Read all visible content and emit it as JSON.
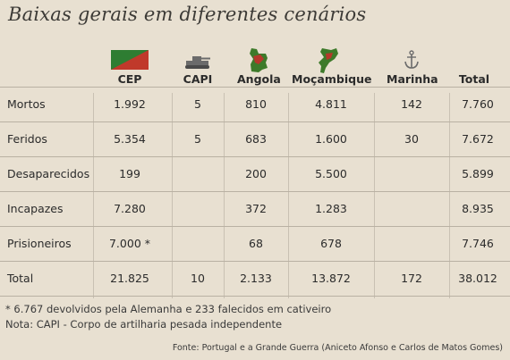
{
  "title": "Baixas gerais em diferentes cenários",
  "columns": [
    "CEP",
    "CAPI",
    "Angola",
    "Moçambique",
    "Marinha",
    "Total"
  ],
  "icons": [
    "cep-flag-icon",
    "tank-icon",
    "angola-map-icon",
    "mozambique-map-icon",
    "anchor-icon"
  ],
  "colors": {
    "flag_green": "#2e7d32",
    "flag_red": "#c0392b",
    "map_green": "#3d7a2a",
    "map_red": "#b5382b"
  },
  "rows": [
    {
      "label": "Mortos",
      "values": [
        "1.992",
        "5",
        "810",
        "4.811",
        "142",
        "7.760"
      ]
    },
    {
      "label": "Feridos",
      "values": [
        "5.354",
        "5",
        "683",
        "1.600",
        "30",
        "7.672"
      ]
    },
    {
      "label": "Desaparecidos",
      "values": [
        "199",
        "",
        "200",
        "5.500",
        "",
        "5.899"
      ]
    },
    {
      "label": "Incapazes",
      "values": [
        "7.280",
        "",
        "372",
        "1.283",
        "",
        "8.935"
      ]
    },
    {
      "label": "Prisioneiros",
      "values": [
        "7.000 *",
        "",
        "68",
        "678",
        "",
        "7.746"
      ]
    },
    {
      "label": "Total",
      "values": [
        "21.825",
        "10",
        "2.133",
        "13.872",
        "172",
        "38.012"
      ]
    }
  ],
  "notes": [
    "* 6.767 devolvidos pela Alemanha e 233 falecidos em cativeiro",
    "Nota: CAPI - Corpo de artilharia pesada independente"
  ],
  "source": "Fonte: Portugal e a Grande Guerra (Aniceto Afonso e Carlos de Matos Gomes)"
}
